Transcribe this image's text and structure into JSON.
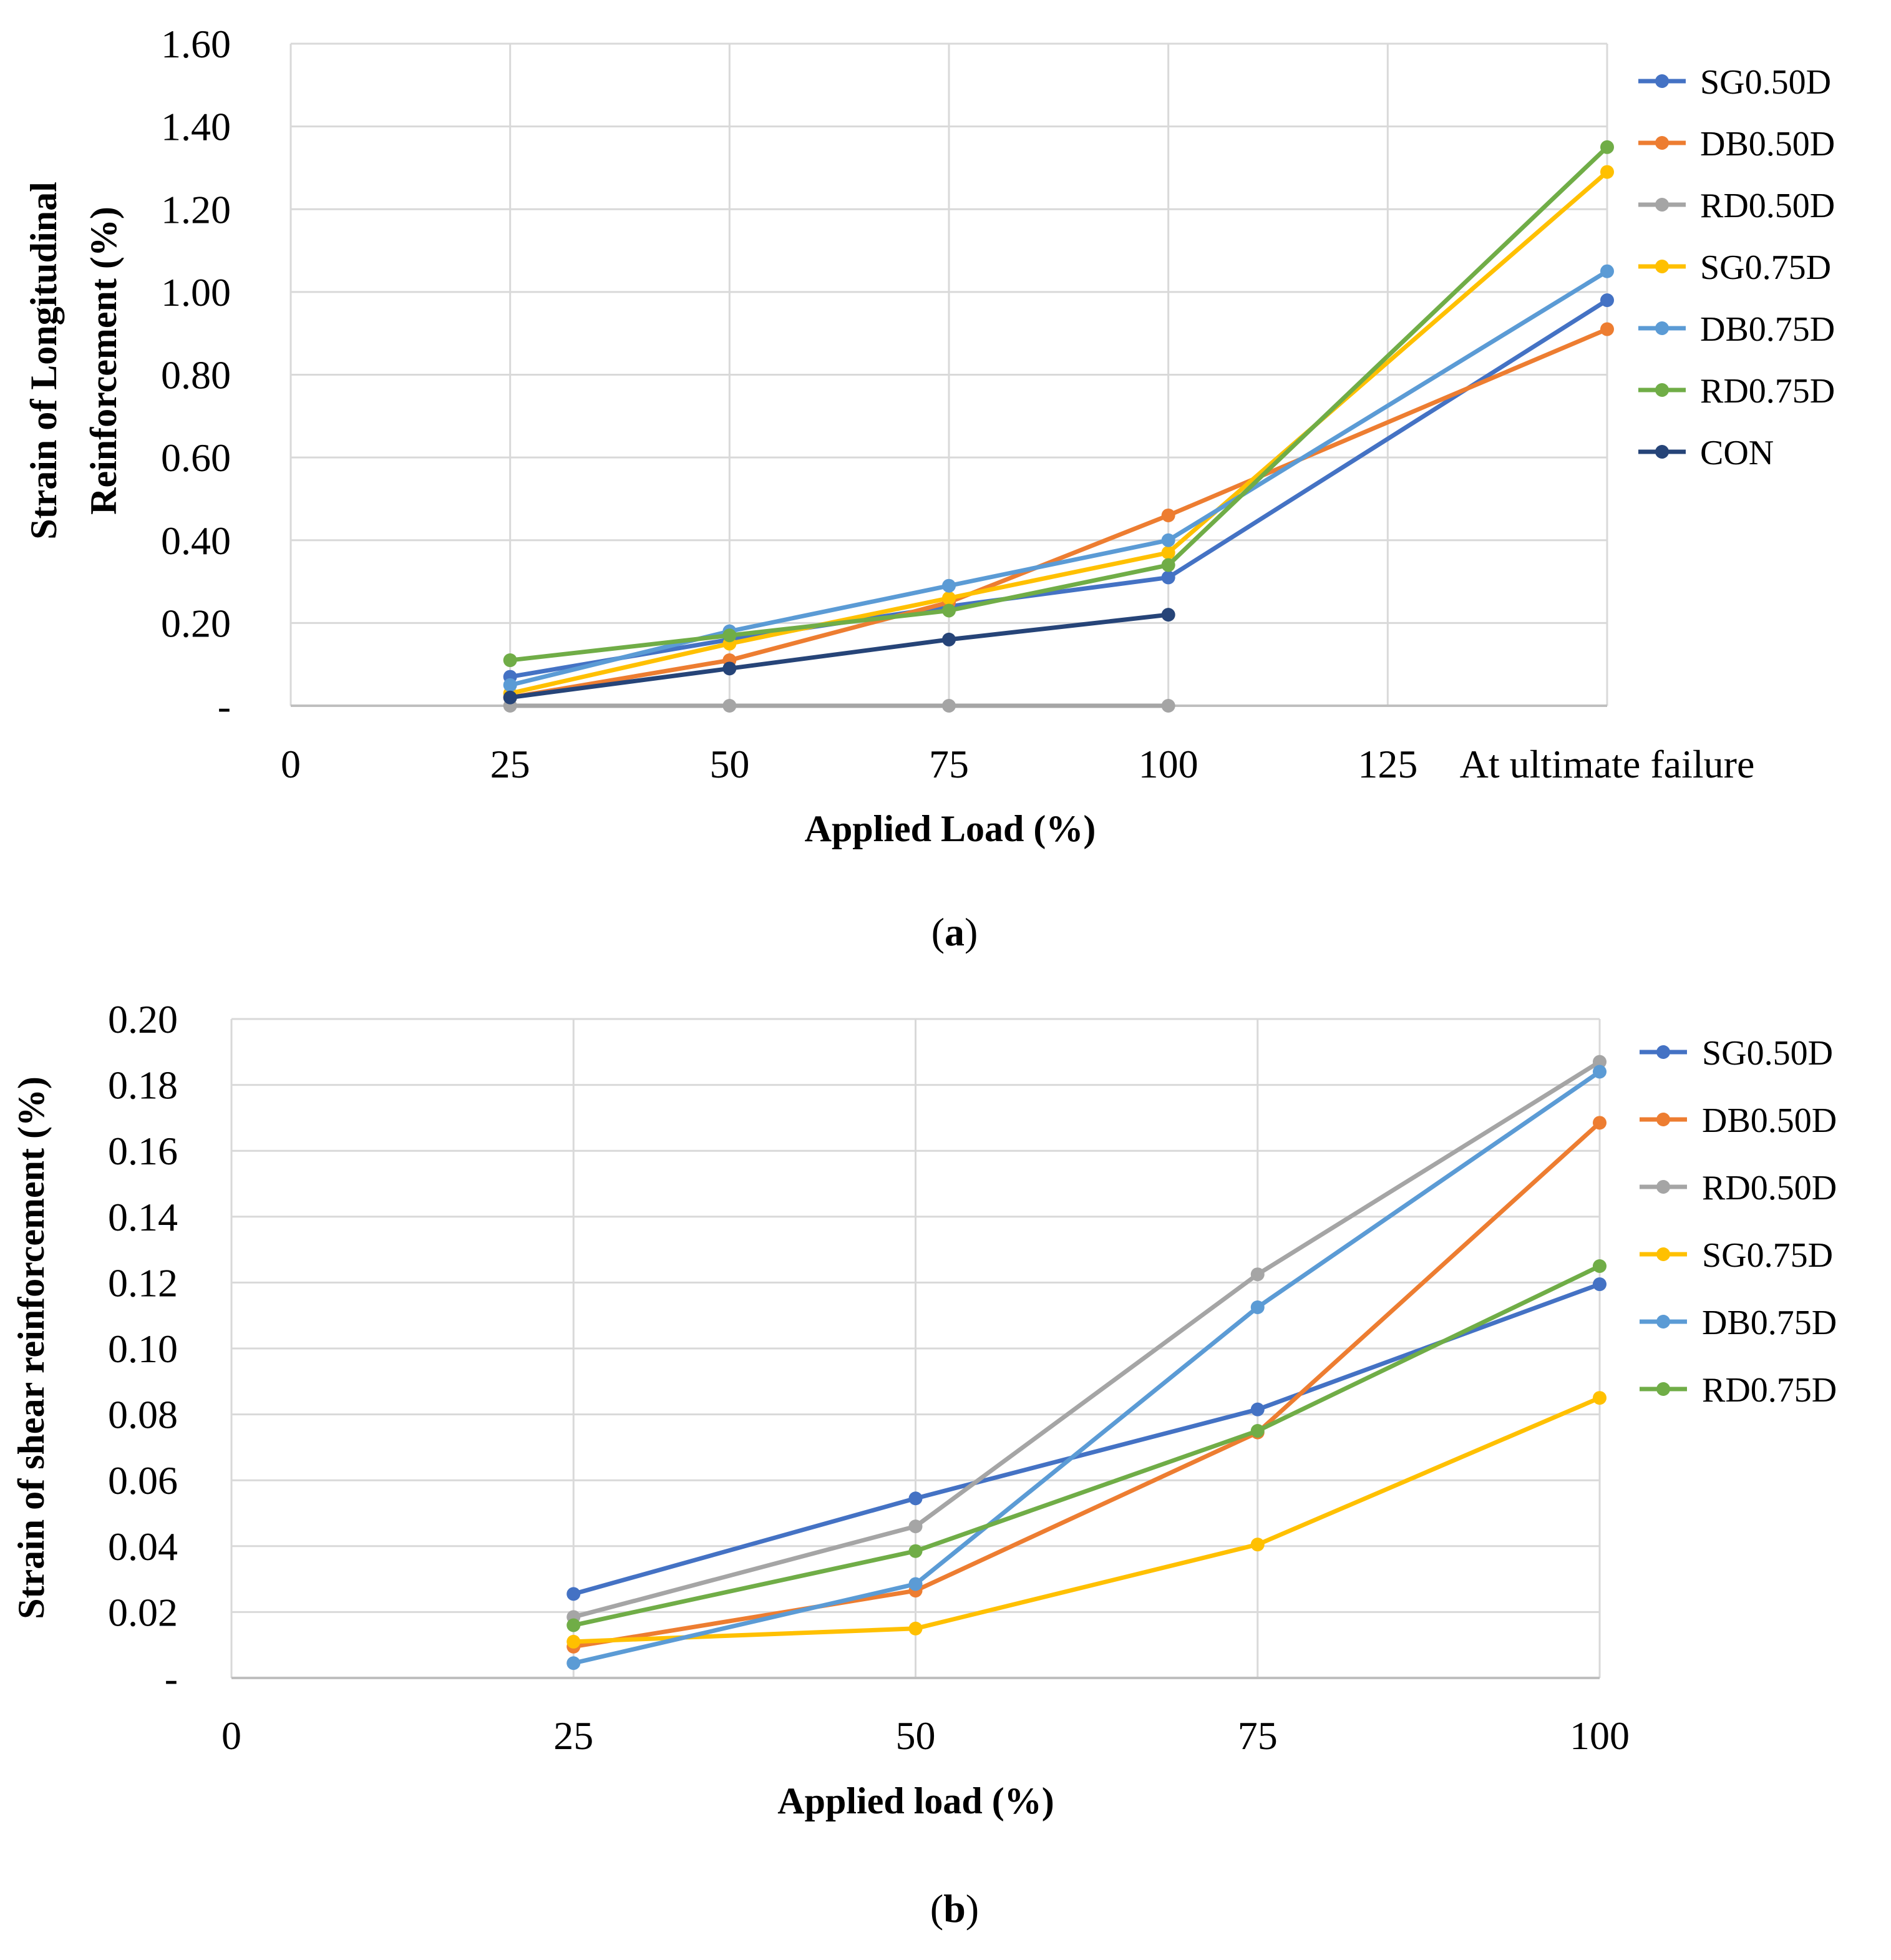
{
  "chart_data": [
    {
      "id": "a",
      "type": "line",
      "caption": {
        "open": "(",
        "letter": "a",
        "close": ")"
      },
      "xlabel": "Applied  Load (%)",
      "ylabel_lines": [
        "Strain  of Longitudinal",
        "Reinforcement  (%)"
      ],
      "x_ticks": [
        "0",
        "25",
        "50",
        "75",
        "100",
        "125",
        "At ultimate failure"
      ],
      "x_tick_positions": [
        0,
        1,
        2,
        3,
        4,
        5,
        6
      ],
      "y_ticks": [
        0,
        0.2,
        0.4,
        0.6,
        0.8,
        1.0,
        1.2,
        1.4,
        1.6
      ],
      "y_tick_labels": [
        "-",
        "0.20",
        "0.40",
        "0.60",
        "0.80",
        "1.00",
        "1.20",
        "1.40",
        "1.60"
      ],
      "ylim": [
        0,
        1.6
      ],
      "grid": true,
      "legend_position": "right",
      "series": [
        {
          "name": "SG0.50D",
          "color": "#4472C4",
          "x": [
            1,
            2,
            3,
            4,
            6
          ],
          "values": [
            0.07,
            0.16,
            0.24,
            0.31,
            0.98
          ]
        },
        {
          "name": "DB0.50D",
          "color": "#ED7D31",
          "x": [
            1,
            2,
            3,
            4,
            6
          ],
          "values": [
            0.02,
            0.11,
            0.25,
            0.46,
            0.91
          ]
        },
        {
          "name": "RD0.50D",
          "color": "#A5A5A5",
          "x": [
            1,
            2,
            3,
            4
          ],
          "values": [
            0.0,
            0.0,
            0.0,
            0.0
          ]
        },
        {
          "name": "SG0.75D",
          "color": "#FFC000",
          "x": [
            1,
            2,
            3,
            4,
            6
          ],
          "values": [
            0.03,
            0.15,
            0.26,
            0.37,
            1.29
          ]
        },
        {
          "name": "DB0.75D",
          "color": "#5B9BD5",
          "x": [
            1,
            2,
            3,
            4,
            6
          ],
          "values": [
            0.05,
            0.18,
            0.29,
            0.4,
            1.05
          ]
        },
        {
          "name": "RD0.75D",
          "color": "#70AD47",
          "x": [
            1,
            2,
            3,
            4,
            6
          ],
          "values": [
            0.11,
            0.17,
            0.23,
            0.34,
            1.35
          ]
        },
        {
          "name": "CON",
          "color": "#264478",
          "x": [
            1,
            2,
            3,
            4
          ],
          "values": [
            0.02,
            0.09,
            0.16,
            0.22
          ]
        }
      ]
    },
    {
      "id": "b",
      "type": "line",
      "caption": {
        "open": "(",
        "letter": "b",
        "close": ")"
      },
      "xlabel": "Applied  load (%)",
      "ylabel_lines": [
        "Strain of shear reinforcement  (%)"
      ],
      "x_ticks": [
        "0",
        "25",
        "50",
        "75",
        "100"
      ],
      "x_tick_positions": [
        0,
        1,
        2,
        3,
        4
      ],
      "y_ticks": [
        0,
        0.02,
        0.04,
        0.06,
        0.08,
        0.1,
        0.12,
        0.14,
        0.16,
        0.18,
        0.2
      ],
      "y_tick_labels": [
        "-",
        "0.02",
        "0.04",
        "0.06",
        "0.08",
        "0.10",
        "0.12",
        "0.14",
        "0.16",
        "0.18",
        "0.20"
      ],
      "ylim": [
        0,
        0.2
      ],
      "grid": true,
      "legend_position": "right",
      "series": [
        {
          "name": "SG0.50D",
          "color": "#4472C4",
          "x": [
            1,
            2,
            3,
            4
          ],
          "values": [
            0.0255,
            0.0545,
            0.0815,
            0.1195
          ]
        },
        {
          "name": "DB0.50D",
          "color": "#ED7D31",
          "x": [
            1,
            2,
            3,
            4
          ],
          "values": [
            0.0095,
            0.0265,
            0.0745,
            0.1685
          ]
        },
        {
          "name": "RD0.50D",
          "color": "#A5A5A5",
          "x": [
            1,
            2,
            3,
            4
          ],
          "values": [
            0.0185,
            0.046,
            0.1225,
            0.187
          ]
        },
        {
          "name": "SG0.75D",
          "color": "#FFC000",
          "x": [
            1,
            2,
            3,
            4
          ],
          "values": [
            0.011,
            0.015,
            0.0405,
            0.085
          ]
        },
        {
          "name": "DB0.75D",
          "color": "#5B9BD5",
          "x": [
            1,
            2,
            3,
            4
          ],
          "values": [
            0.0045,
            0.0285,
            0.1125,
            0.184
          ]
        },
        {
          "name": "RD0.75D",
          "color": "#70AD47",
          "x": [
            1,
            2,
            3,
            4
          ],
          "values": [
            0.016,
            0.0385,
            0.075,
            0.125
          ]
        }
      ]
    }
  ]
}
